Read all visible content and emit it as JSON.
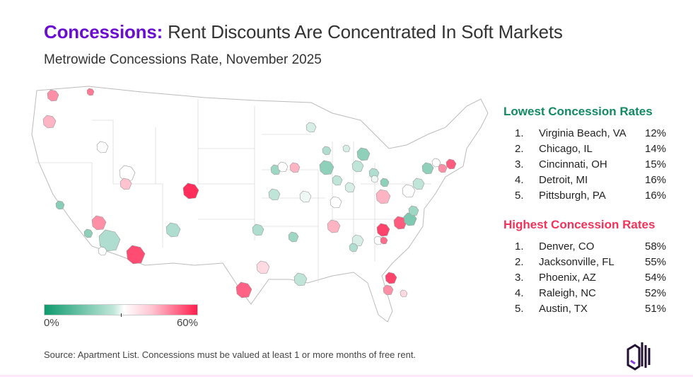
{
  "header": {
    "title_accent": "Concessions:",
    "title_rest": " Rent Discounts Are Concentrated In Soft Markets",
    "subtitle": "Metrowide Concessions Rate, November 2025"
  },
  "legend": {
    "min_label": "0%",
    "max_label": "60%",
    "low_color": "#0e9a6e",
    "high_color": "#ff1f4f",
    "min": 0,
    "max": 60
  },
  "lowest": {
    "title": "Lowest Concession Rates",
    "color": "#128a63",
    "items": [
      {
        "rank": "1.",
        "city": "Virginia Beach, VA",
        "value": "12%"
      },
      {
        "rank": "2.",
        "city": "Chicago, IL",
        "value": "14%"
      },
      {
        "rank": "3.",
        "city": "Cincinnati, OH",
        "value": "15%"
      },
      {
        "rank": "4.",
        "city": "Detroit, MI",
        "value": "16%"
      },
      {
        "rank": "5.",
        "city": "Pittsburgh, PA",
        "value": "16%"
      }
    ]
  },
  "highest": {
    "title": "Highest Concession Rates",
    "color": "#f0335a",
    "items": [
      {
        "rank": "1.",
        "city": "Denver, CO",
        "value": "58%"
      },
      {
        "rank": "2.",
        "city": "Jacksonville, FL",
        "value": "55%"
      },
      {
        "rank": "3.",
        "city": "Phoenix, AZ",
        "value": "54%"
      },
      {
        "rank": "4.",
        "city": "Raleigh, NC",
        "value": "52%"
      },
      {
        "rank": "5.",
        "city": "Austin, TX",
        "value": "51%"
      }
    ]
  },
  "footer": {
    "source": "Source: Apartment List. Concessions must be valued at least 1 or more months of free rent."
  },
  "brand": {
    "accent": "#6a0fd0",
    "logo_icon": "apartment-list-logo-icon"
  }
}
